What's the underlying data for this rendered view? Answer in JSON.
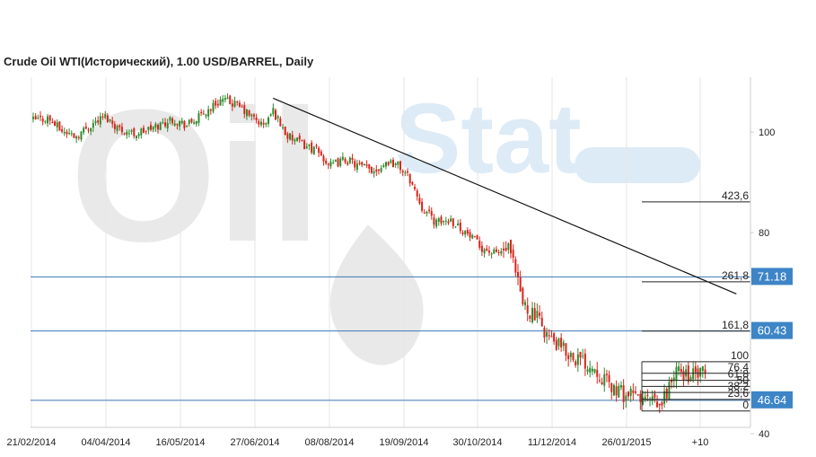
{
  "title": "Crude Oil WTI(Исторический), 1.00 USD/BARREL, Daily",
  "colors": {
    "up": "#2e8b2e",
    "down": "#d9241b",
    "hline": "#3c78b4",
    "badge": "#3d85c6",
    "axis": "#cccccc"
  },
  "chart_data": {
    "type": "candlestick",
    "title": "Crude Oil WTI(Исторический), 1.00 USD/BARREL, Daily",
    "x_tick_labels": [
      "21/02/2014",
      "04/04/2014",
      "16/05/2014",
      "27/06/2014",
      "08/08/2014",
      "19/09/2014",
      "30/10/2014",
      "11/12/2014",
      "26/01/2015",
      "+10"
    ],
    "y_tick_labels": [
      "100",
      "80",
      "40"
    ],
    "ylim": [
      40,
      110
    ],
    "close_path": [
      [
        0,
        102.3
      ],
      [
        6,
        102.8
      ],
      [
        12,
        100.2
      ],
      [
        18,
        99.2
      ],
      [
        25,
        101.8
      ],
      [
        30,
        103.1
      ],
      [
        36,
        100.6
      ],
      [
        42,
        99.6
      ],
      [
        50,
        100.8
      ],
      [
        58,
        102.6
      ],
      [
        64,
        101.3
      ],
      [
        70,
        103.2
      ],
      [
        78,
        106.4
      ],
      [
        84,
        105.6
      ],
      [
        90,
        103.4
      ],
      [
        96,
        101.2
      ],
      [
        100,
        104.2
      ],
      [
        106,
        99.1
      ],
      [
        112,
        97.6
      ],
      [
        118,
        96.3
      ],
      [
        124,
        93.2
      ],
      [
        130,
        94.6
      ],
      [
        136,
        93.1
      ],
      [
        142,
        92.4
      ],
      [
        148,
        94.2
      ],
      [
        152,
        93.4
      ],
      [
        157,
        90.6
      ],
      [
        162,
        85.1
      ],
      [
        168,
        81.9
      ],
      [
        174,
        82.6
      ],
      [
        180,
        80.1
      ],
      [
        186,
        77.3
      ],
      [
        192,
        75.8
      ],
      [
        198,
        76.6
      ],
      [
        200,
        73.5
      ],
      [
        204,
        65.9
      ],
      [
        210,
        62.9
      ],
      [
        216,
        58.4
      ],
      [
        222,
        56.3
      ],
      [
        228,
        54.6
      ],
      [
        234,
        53.2
      ],
      [
        240,
        49.6
      ],
      [
        246,
        47.8
      ],
      [
        252,
        47.2
      ],
      [
        258,
        46.3
      ],
      [
        261,
        44.9
      ],
      [
        264,
        48.5
      ],
      [
        268,
        52.4
      ],
      [
        274,
        51.6
      ],
      [
        280,
        51.9
      ]
    ],
    "series": [
      {
        "type": "trendline",
        "points": [
          [
            100,
            106.7
          ],
          [
            293,
            67.8
          ]
        ]
      }
    ],
    "horizontal_lines": [
      {
        "value": 71.18,
        "label": "71.18"
      },
      {
        "value": 60.43,
        "label": "60.43"
      },
      {
        "value": 46.64,
        "label": "46.64"
      }
    ],
    "fibonacci": {
      "low": 44.5,
      "high": 54.3,
      "levels": [
        {
          "level": "0",
          "value": 44.5
        },
        {
          "level": "23,6",
          "value": 46.8
        },
        {
          "level": "38,2",
          "value": 48.2
        },
        {
          "level": "50",
          "value": 49.4
        },
        {
          "level": "61,8",
          "value": 50.6
        },
        {
          "level": "76,4",
          "value": 52.0
        },
        {
          "level": "100",
          "value": 54.3
        },
        {
          "level": "161,8",
          "value": 60.4
        },
        {
          "level": "261,8",
          "value": 70.2
        },
        {
          "level": "423,6",
          "value": 86.1
        }
      ]
    }
  },
  "watermark": {
    "text_left": "Oil",
    "text_right": "Stat"
  }
}
